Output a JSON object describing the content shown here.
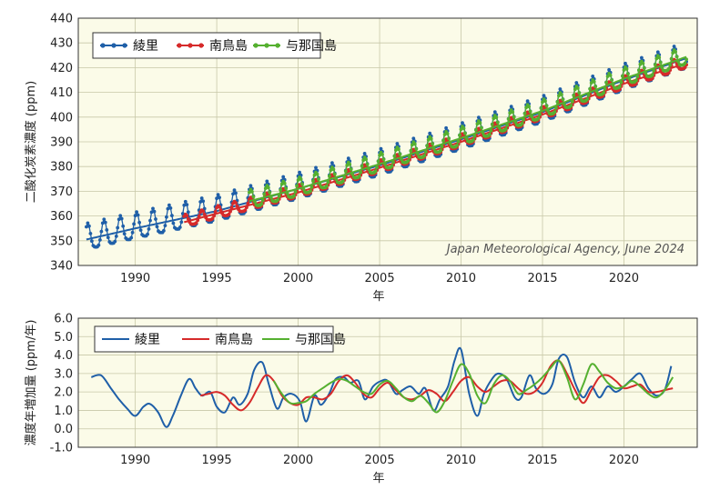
{
  "chart_data": [
    {
      "type": "line",
      "ylabel": "二酸化炭素濃度 (ppm)",
      "xlabel": "年",
      "xlim": [
        1986.5,
        2024.5
      ],
      "ylim": [
        340,
        440
      ],
      "xticks": [
        1990,
        1995,
        2000,
        2005,
        2010,
        2015,
        2020
      ],
      "yticks": [
        340,
        350,
        360,
        370,
        380,
        390,
        400,
        410,
        420,
        430,
        440
      ],
      "grid": true,
      "legend_position": "top-left",
      "credit": "Japan Meteorological Agency, June 2024",
      "series": [
        {
          "name": "綾里",
          "color": "#1f5fa8",
          "marker": "dot",
          "start": 1987.0,
          "end": 2023.9,
          "trend": {
            "x": [
              1987,
              1990,
              1995,
              2000,
              2005,
              2010,
              2015,
              2020,
              2023.9
            ],
            "y": [
              350.5,
              355.0,
              362.0,
              371.0,
              380.5,
              391.0,
              402.0,
              415.0,
              424.0
            ]
          },
          "seasonal_amplitude": 6.5
        },
        {
          "name": "南鳥島",
          "color": "#d62a2a",
          "marker": "dot",
          "start": 1993.0,
          "end": 2023.9,
          "trend": {
            "x": [
              1993,
              1995,
              2000,
              2005,
              2010,
              2015,
              2020,
              2023.9
            ],
            "y": [
              357.5,
              361.0,
              369.5,
              379.5,
              390.0,
              401.0,
              413.5,
              422.0
            ]
          },
          "seasonal_amplitude": 3.0
        },
        {
          "name": "与那国島",
          "color": "#55b030",
          "marker": "dot",
          "start": 1997.0,
          "end": 2023.9,
          "trend": {
            "x": [
              1997,
              2000,
              2005,
              2010,
              2015,
              2020,
              2023.9
            ],
            "y": [
              366.0,
              371.0,
              381.0,
              391.5,
              402.5,
              415.5,
              424.5
            ]
          },
          "seasonal_amplitude": 4.5
        }
      ]
    },
    {
      "type": "line",
      "ylabel": "濃度年増加量 (ppm/年)",
      "xlabel": "年",
      "xlim": [
        1986.5,
        2024.5
      ],
      "ylim": [
        -1.0,
        6.0
      ],
      "xticks": [
        1990,
        1995,
        2000,
        2005,
        2010,
        2015,
        2020
      ],
      "yticks": [
        -1.0,
        0.0,
        1.0,
        2.0,
        3.0,
        4.0,
        5.0,
        6.0
      ],
      "ytick_labels": [
        "-1.0",
        "0.0",
        "1.0",
        "2.0",
        "3.0",
        "4.0",
        "5.0",
        "6.0"
      ],
      "grid": true,
      "legend_position": "top-left",
      "series": [
        {
          "name": "綾里",
          "color": "#1f5fa8",
          "x": [
            1987.3,
            1987.9,
            1988.5,
            1989.0,
            1989.5,
            1990.0,
            1990.5,
            1990.9,
            1991.4,
            1991.9,
            1992.3,
            1992.8,
            1993.3,
            1993.7,
            1994.1,
            1994.6,
            1995.0,
            1995.5,
            1996.0,
            1996.4,
            1996.9,
            1997.3,
            1997.8,
            1998.2,
            1998.7,
            1999.1,
            1999.6,
            2000.1,
            2000.5,
            2001.0,
            2001.4,
            2001.9,
            2002.3,
            2002.8,
            2003.2,
            2003.7,
            2004.1,
            2004.6,
            2005.1,
            2005.5,
            2006.0,
            2006.4,
            2006.9,
            2007.4,
            2007.8,
            2008.3,
            2008.7,
            2009.2,
            2009.6,
            2010.0,
            2010.5,
            2011.0,
            2011.4,
            2011.9,
            2012.3,
            2012.8,
            2013.3,
            2013.7,
            2014.2,
            2014.6,
            2015.1,
            2015.6,
            2016.0,
            2016.5,
            2017.0,
            2017.5,
            2018.0,
            2018.5,
            2019.0,
            2019.5,
            2020.0,
            2020.5,
            2021.0,
            2021.5,
            2022.0,
            2022.5,
            2022.9
          ],
          "y": [
            2.8,
            2.9,
            2.2,
            1.6,
            1.1,
            0.7,
            1.2,
            1.35,
            0.9,
            0.1,
            0.7,
            1.8,
            2.7,
            2.2,
            1.8,
            2.0,
            1.2,
            0.9,
            1.7,
            1.3,
            1.9,
            3.2,
            3.6,
            2.4,
            1.1,
            1.7,
            1.9,
            1.5,
            0.4,
            1.8,
            1.3,
            1.9,
            2.7,
            2.8,
            2.5,
            2.6,
            1.6,
            2.3,
            2.6,
            2.6,
            1.9,
            2.1,
            2.3,
            1.9,
            2.2,
            1.0,
            1.6,
            2.3,
            3.7,
            4.3,
            1.9,
            0.7,
            1.9,
            2.7,
            3.0,
            2.7,
            1.7,
            1.7,
            2.9,
            2.2,
            1.9,
            2.4,
            3.8,
            3.9,
            2.5,
            1.7,
            2.3,
            1.7,
            2.3,
            2.0,
            2.3,
            2.7,
            3.0,
            2.2,
            1.8,
            2.1,
            3.4
          ]
        },
        {
          "name": "南鳥島",
          "color": "#d62a2a",
          "x": [
            1994.0,
            1994.5,
            1995.0,
            1995.5,
            1996.0,
            1996.5,
            1997.0,
            1997.5,
            1998.0,
            1998.5,
            1999.0,
            1999.5,
            2000.0,
            2000.5,
            2001.0,
            2001.5,
            2002.0,
            2002.5,
            2003.0,
            2003.5,
            2004.0,
            2004.5,
            2005.0,
            2005.5,
            2006.0,
            2006.5,
            2007.0,
            2007.5,
            2008.0,
            2008.5,
            2009.0,
            2009.5,
            2010.0,
            2010.5,
            2011.0,
            2011.5,
            2012.0,
            2012.5,
            2013.0,
            2013.5,
            2014.0,
            2014.5,
            2015.0,
            2015.5,
            2016.0,
            2016.5,
            2017.0,
            2017.5,
            2018.0,
            2018.5,
            2019.0,
            2019.5,
            2020.0,
            2020.5,
            2021.0,
            2021.5,
            2022.0,
            2022.5,
            2023.0
          ],
          "y": [
            1.8,
            1.9,
            2.0,
            1.8,
            1.3,
            1.0,
            1.4,
            2.2,
            2.9,
            2.6,
            1.8,
            1.4,
            1.3,
            1.7,
            1.7,
            1.6,
            1.9,
            2.6,
            2.9,
            2.5,
            1.9,
            1.7,
            2.2,
            2.5,
            2.1,
            1.7,
            1.6,
            1.8,
            2.1,
            1.9,
            1.5,
            2.0,
            2.6,
            2.8,
            2.3,
            2.0,
            2.3,
            2.6,
            2.6,
            2.2,
            1.9,
            2.0,
            2.5,
            3.4,
            3.7,
            3.0,
            2.1,
            1.4,
            2.1,
            2.8,
            2.9,
            2.6,
            2.2,
            2.3,
            2.4,
            2.0,
            2.0,
            2.1,
            2.2
          ]
        },
        {
          "name": "与那国島",
          "color": "#55b030",
          "x": [
            1998.5,
            1999.0,
            1999.5,
            2000.0,
            2000.5,
            2001.0,
            2001.5,
            2002.0,
            2002.5,
            2003.0,
            2003.5,
            2004.0,
            2004.5,
            2005.0,
            2005.5,
            2006.0,
            2006.5,
            2007.0,
            2007.5,
            2008.0,
            2008.5,
            2009.0,
            2009.5,
            2010.0,
            2010.5,
            2011.0,
            2011.5,
            2012.0,
            2012.5,
            2013.0,
            2013.5,
            2014.0,
            2014.5,
            2015.0,
            2015.5,
            2016.0,
            2016.5,
            2017.0,
            2017.5,
            2018.0,
            2018.5,
            2019.0,
            2019.5,
            2020.0,
            2020.5,
            2021.0,
            2021.5,
            2022.0,
            2022.5,
            2023.0
          ],
          "y": [
            2.6,
            1.9,
            1.4,
            1.4,
            1.5,
            1.9,
            2.2,
            2.5,
            2.7,
            2.6,
            2.3,
            2.0,
            1.9,
            2.4,
            2.6,
            2.2,
            1.7,
            1.5,
            1.8,
            1.4,
            0.9,
            1.5,
            2.6,
            3.5,
            3.0,
            1.8,
            1.4,
            2.4,
            2.9,
            2.6,
            1.9,
            2.1,
            2.4,
            2.8,
            3.3,
            3.7,
            2.8,
            1.6,
            2.4,
            3.5,
            3.1,
            2.5,
            2.2,
            2.3,
            2.6,
            2.3,
            1.9,
            1.7,
            2.1,
            2.8
          ]
        }
      ]
    }
  ]
}
